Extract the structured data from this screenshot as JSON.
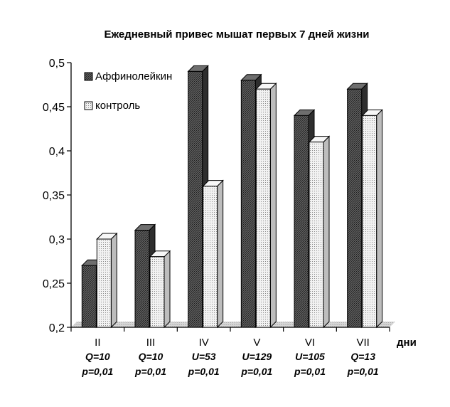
{
  "chart_data": {
    "type": "bar",
    "title": "Ежедневный привес мышат первых 7 дней жизни",
    "xlabel": "дни",
    "ylabel": "",
    "ylim": [
      0.2,
      0.5
    ],
    "yticks": [
      "0,2",
      "0,25",
      "0,3",
      "0,35",
      "0,4",
      "0,45",
      "0,5"
    ],
    "yticks_values": [
      0.2,
      0.25,
      0.3,
      0.35,
      0.4,
      0.45,
      0.5
    ],
    "categories": [
      "II",
      "III",
      "IV",
      "V",
      "VI",
      "VII"
    ],
    "stats": [
      [
        "Q=10",
        "p=0,01"
      ],
      [
        "Q=10",
        "p=0,01"
      ],
      [
        "U=53",
        "p=0,01"
      ],
      [
        "U=129",
        "p=0,01"
      ],
      [
        "U=105",
        "p=0,01"
      ],
      [
        "Q=13",
        "p=0,01"
      ]
    ],
    "series": [
      {
        "name": "Аффинолейкин",
        "values": [
          0.27,
          0.31,
          0.49,
          0.48,
          0.44,
          0.47
        ],
        "color": "#4a4a4a"
      },
      {
        "name": "контроль",
        "values": [
          0.3,
          0.28,
          0.36,
          0.47,
          0.41,
          0.44
        ],
        "color": "#e6e6e6"
      }
    ],
    "legend_position": "top-left",
    "grid": false
  }
}
